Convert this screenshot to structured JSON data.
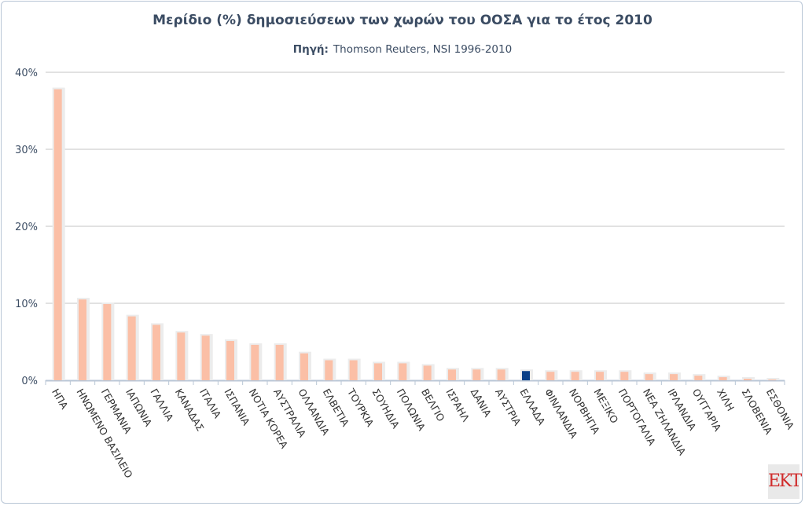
{
  "chart_data": {
    "type": "bar",
    "title": "Μερίδιο (%) δημοσιεύσεων των χωρών του ΟΟΣΑ για το έτος 2010",
    "source_label": "Πηγή:",
    "source": "Thomson Reuters, NSI 1996-2010",
    "xlabel": "",
    "ylabel": "",
    "ylim": [
      0,
      40
    ],
    "yticks": [
      0,
      10,
      20,
      30,
      40
    ],
    "ytick_labels": [
      "0%",
      "10%",
      "20%",
      "30%",
      "40%"
    ],
    "grid": true,
    "categories": [
      "ΗΠΑ",
      "ΗΝΩΜΕΝΟ ΒΑΣΙΛΕΙΟ",
      "ΓΕΡΜΑΝΙΑ",
      "ΙΑΠΩΝΙΑ",
      "ΓΑΛΛΙΑ",
      "ΚΑΝΑΔΑΣ",
      "ΙΤΑΛΙΑ",
      "ΙΣΠΑΝΙΑ",
      "ΝΟΤΙΑ ΚΟΡΕΑ",
      "ΑΥΣΤΡΑΛΙΑ",
      "ΟΛΛΑΝΔΙΑ",
      "ΕΛΒΕΤΙΑ",
      "ΤΟΥΡΚΙΑ",
      "ΣΟΥΗΔΙΑ",
      "ΠΟΛΩΝΙΑ",
      "ΒΕΛΓΙΟ",
      "ΙΣΡΑΗΛ",
      "ΔΑΝΙΑ",
      "ΑΥΣΤΡΙΑ",
      "ΕΛΛΑΔΑ",
      "ΦΙΝΛΑΝΔΙΑ",
      "ΝΟΡΒΗΓΙΑ",
      "ΜΕΞΙΚΟ",
      "ΠΟΡΤΟΓΑΛΙΑ",
      "ΝΕΑ ΖΗΛΑΝΔΙΑ",
      "ΙΡΛΑΝΔΙΑ",
      "ΟΥΓΓΑΡΙΑ",
      "ΧΙΛΗ",
      "ΣΛΟΒΕΝΙΑ",
      "ΕΣΘΟΝΙΑ"
    ],
    "values": [
      37.8,
      10.5,
      9.9,
      8.3,
      7.2,
      6.2,
      5.8,
      5.1,
      4.6,
      4.6,
      3.5,
      2.6,
      2.6,
      2.2,
      2.2,
      1.9,
      1.4,
      1.4,
      1.4,
      1.2,
      1.1,
      1.1,
      1.1,
      1.1,
      0.8,
      0.8,
      0.6,
      0.4,
      0.2,
      0.1
    ],
    "highlight": "ΕΛΛΑΔΑ",
    "colors": {
      "bar": "#fbbfa6",
      "highlight": "#0b3f87",
      "grid": "#c4c4c4",
      "axis": "#b9c6d6",
      "text": "#3b4c63"
    }
  },
  "logo_text": "EKT"
}
